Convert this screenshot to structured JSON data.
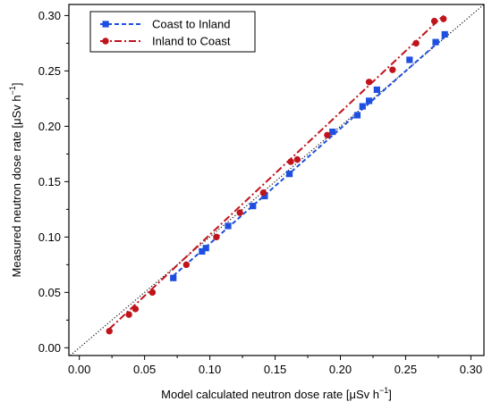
{
  "chart_data": {
    "type": "scatter",
    "xlabel": {
      "main": "Model calculated neutron dose rate [",
      "mu": "μ",
      "unit": "Sv h",
      "sup": "−1",
      "close": "]"
    },
    "ylabel": {
      "main": "Measured neutron dose rate [",
      "mu": "μ",
      "unit": "Sv h",
      "sup": "−1",
      "close": "]"
    },
    "xlim": [
      -0.008,
      0.31
    ],
    "ylim": [
      -0.007,
      0.31
    ],
    "xticks": [
      "0.00",
      "0.05",
      "0.10",
      "0.15",
      "0.20",
      "0.25",
      "0.30"
    ],
    "yticks": [
      "0.00",
      "0.05",
      "0.10",
      "0.15",
      "0.20",
      "0.25",
      "0.30"
    ],
    "grid": false,
    "legend_position": "top-left",
    "reference_line": {
      "type": "1:1",
      "style": "dotted",
      "color": "#000000"
    },
    "series": [
      {
        "name": "Coast to Inland",
        "marker": "square",
        "line": "dashed",
        "color": "#1f4fe0",
        "x": [
          0.072,
          0.094,
          0.097,
          0.114,
          0.133,
          0.142,
          0.161,
          0.194,
          0.213,
          0.217,
          0.222,
          0.228,
          0.253,
          0.273,
          0.28
        ],
        "y": [
          0.063,
          0.087,
          0.09,
          0.11,
          0.128,
          0.137,
          0.157,
          0.195,
          0.21,
          0.218,
          0.223,
          0.233,
          0.26,
          0.276,
          0.283
        ],
        "fit_x": [
          0.072,
          0.28
        ],
        "fit_y": [
          0.065,
          0.281
        ]
      },
      {
        "name": "Inland to Coast",
        "marker": "circle",
        "line": "dashdot",
        "color": "#c0141c",
        "x": [
          0.023,
          0.038,
          0.043,
          0.056,
          0.082,
          0.105,
          0.123,
          0.141,
          0.162,
          0.167,
          0.19,
          0.222,
          0.24,
          0.258,
          0.272,
          0.279
        ],
        "y": [
          0.015,
          0.03,
          0.035,
          0.05,
          0.075,
          0.1,
          0.122,
          0.14,
          0.168,
          0.17,
          0.192,
          0.24,
          0.251,
          0.275,
          0.295,
          0.297
        ],
        "fit_x": [
          0.023,
          0.279
        ],
        "fit_y": [
          0.017,
          0.3
        ]
      }
    ]
  }
}
